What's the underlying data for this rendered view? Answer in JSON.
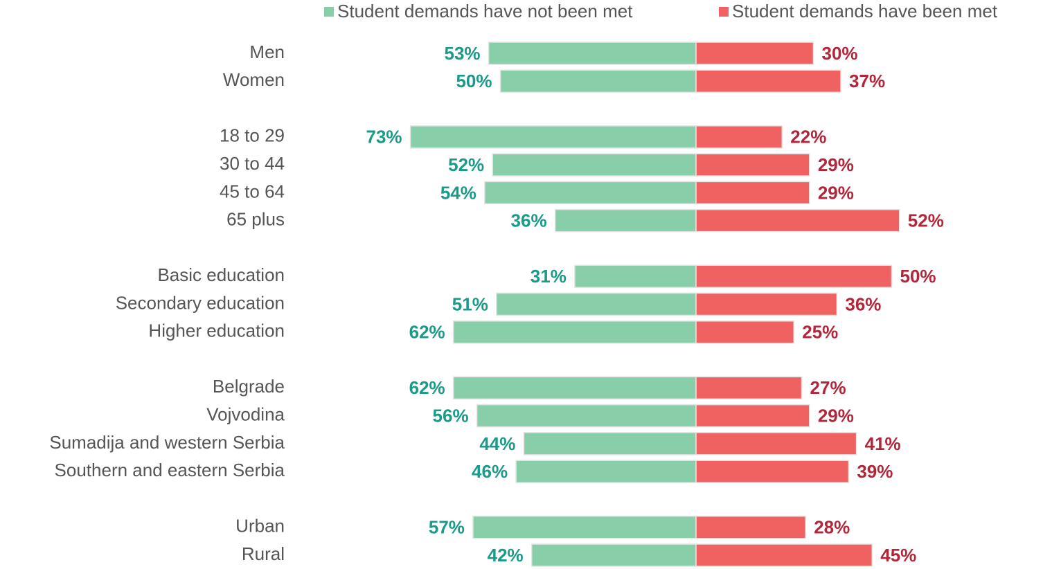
{
  "chart_data": {
    "type": "diverging-bar",
    "categories": [
      "Men",
      "Women",
      null,
      "18 to 29",
      "30 to 44",
      "45 to 64",
      "65 plus",
      null,
      "Basic education",
      "Secondary education",
      "Higher education",
      null,
      "Belgrade",
      "Vojvodina",
      "Sumadija and western Serbia",
      "Southern and eastern Serbia",
      null,
      "Urban",
      "Rural"
    ],
    "series": [
      {
        "name": "Student demands have not been met",
        "color": "#88cfa9",
        "label_color": "#1a9a88",
        "side": "left",
        "values": [
          53,
          50,
          null,
          73,
          52,
          54,
          36,
          null,
          31,
          51,
          62,
          null,
          62,
          56,
          44,
          46,
          null,
          57,
          42
        ],
        "value_labels": [
          "53%",
          "50%",
          null,
          "73%",
          "52%",
          "54%",
          "36%",
          null,
          "31%",
          "51%",
          "62%",
          null,
          "62%",
          "56%",
          "44%",
          "46%",
          null,
          "57%",
          "42%"
        ]
      },
      {
        "name": "Student demands have been met",
        "color": "#f06262",
        "label_color": "#b3263a",
        "side": "right",
        "values": [
          30,
          37,
          null,
          22,
          29,
          29,
          52,
          null,
          50,
          36,
          25,
          null,
          27,
          29,
          41,
          39,
          null,
          28,
          45
        ],
        "value_labels": [
          "30%",
          "37%",
          null,
          "22%",
          "29%",
          "29%",
          "52%",
          null,
          "50%",
          "36%",
          "25%",
          null,
          "27%",
          "29%",
          "41%",
          "39%",
          null,
          "28%",
          "45%"
        ]
      }
    ],
    "legend": "top-right"
  }
}
